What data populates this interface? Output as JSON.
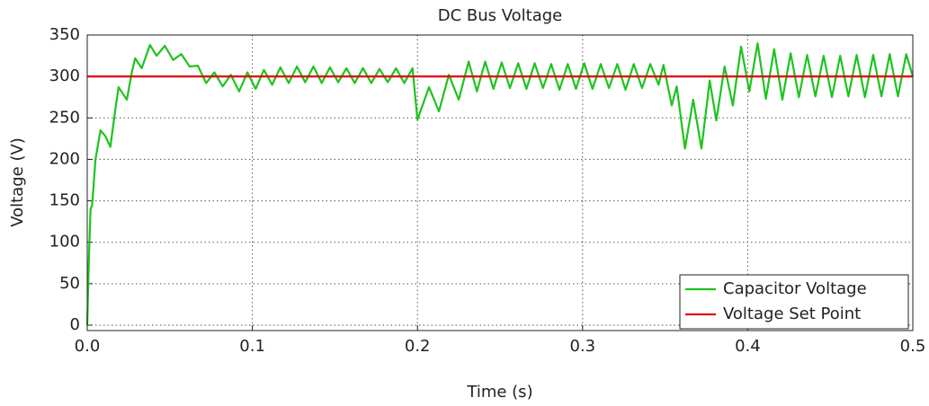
{
  "chart_data": {
    "type": "line",
    "title": "DC Bus Voltage",
    "xlabel": "Time (s)",
    "ylabel": "Voltage (V)",
    "xlim": [
      0,
      0.5
    ],
    "xticks": [
      {
        "value": 0,
        "label": "0.0"
      },
      0.1,
      0.2,
      0.3,
      0.4,
      0.5
    ],
    "ylim": [
      -6.5,
      350
    ],
    "yticks": [
      0,
      50,
      100,
      150,
      200,
      250,
      300,
      350
    ],
    "grid": true,
    "legend": "lower right",
    "series": [
      {
        "name": "Capacitor Voltage",
        "color": "#1ec31e",
        "x": [
          0,
          0.001,
          0.002,
          0.003,
          0.005,
          0.008,
          0.011,
          0.014,
          0.017,
          0.019,
          0.022,
          0.024,
          0.027,
          0.029,
          0.033,
          0.038,
          0.042,
          0.047,
          0.052,
          0.057,
          0.062,
          0.067,
          0.072,
          0.077,
          0.082,
          0.087,
          0.092,
          0.097,
          0.102,
          0.107,
          0.112,
          0.117,
          0.122,
          0.127,
          0.132,
          0.137,
          0.142,
          0.147,
          0.152,
          0.157,
          0.162,
          0.167,
          0.172,
          0.177,
          0.182,
          0.187,
          0.192,
          0.197,
          0.2,
          0.207,
          0.213,
          0.219,
          0.225,
          0.231,
          0.236,
          0.241,
          0.246,
          0.251,
          0.256,
          0.261,
          0.266,
          0.271,
          0.276,
          0.281,
          0.286,
          0.291,
          0.296,
          0.301,
          0.306,
          0.311,
          0.316,
          0.321,
          0.326,
          0.331,
          0.336,
          0.341,
          0.346,
          0.349,
          0.354,
          0.357,
          0.362,
          0.367,
          0.372,
          0.377,
          0.381,
          0.386,
          0.391,
          0.396,
          0.401,
          0.406,
          0.411,
          0.416,
          0.421,
          0.426,
          0.431,
          0.436,
          0.441,
          0.446,
          0.451,
          0.456,
          0.461,
          0.466,
          0.471,
          0.476,
          0.481,
          0.486,
          0.491,
          0.496,
          0.5
        ],
        "values": [
          0,
          80,
          140,
          145,
          200,
          235,
          228,
          215,
          260,
          287,
          278,
          272,
          305,
          322,
          310,
          338,
          325,
          337,
          320,
          327,
          312,
          313,
          292,
          305,
          288,
          302,
          282,
          305,
          285,
          308,
          290,
          311,
          292,
          312,
          293,
          312,
          292,
          311,
          293,
          310,
          292,
          310,
          292,
          309,
          293,
          310,
          292,
          310,
          248,
          287,
          258,
          302,
          272,
          318,
          282,
          318,
          285,
          317,
          286,
          316,
          285,
          316,
          286,
          315,
          284,
          315,
          285,
          316,
          285,
          315,
          286,
          315,
          284,
          315,
          286,
          315,
          290,
          314,
          265,
          288,
          213,
          272,
          213,
          295,
          247,
          312,
          265,
          336,
          282,
          340,
          273,
          333,
          272,
          328,
          275,
          326,
          276,
          325,
          275,
          325,
          276,
          326,
          275,
          326,
          276,
          327,
          276,
          327,
          300
        ]
      },
      {
        "name": "Voltage Set Point",
        "color": "#e00000",
        "x": [
          0,
          0.5
        ],
        "values": [
          300,
          300
        ]
      }
    ]
  }
}
